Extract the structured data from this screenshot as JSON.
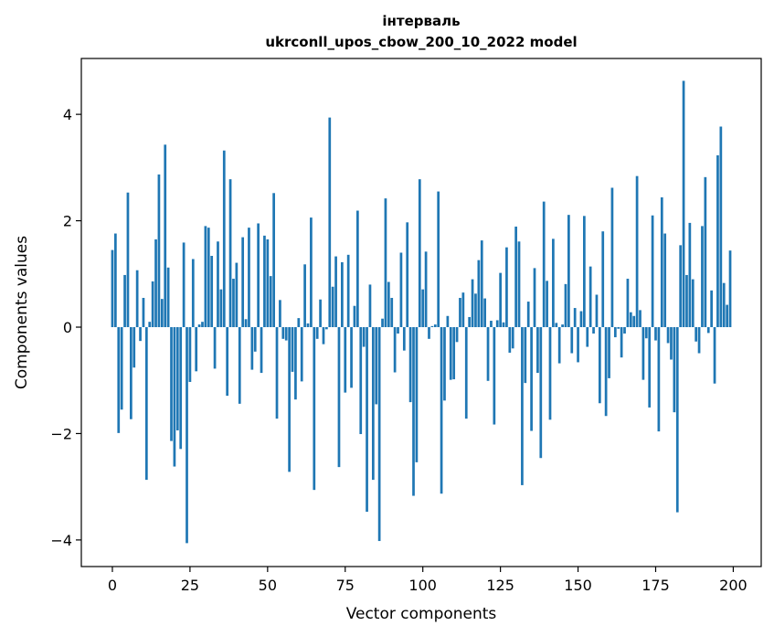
{
  "chart_data": {
    "type": "bar",
    "title_line1": "інтерваль",
    "title_line2": "ukrconll_upos_cbow_200_10_2022 model",
    "xlabel": "Vector components",
    "ylabel": "Components values",
    "xlim": [
      -10,
      209
    ],
    "ylim": [
      -4.5,
      5.05
    ],
    "xticks": [
      0,
      25,
      50,
      75,
      100,
      125,
      150,
      175,
      200
    ],
    "yticks": [
      -4,
      -2,
      0,
      2,
      4
    ],
    "ytick_labels": [
      "−4",
      "−2",
      "0",
      "2",
      "4"
    ],
    "bar_color": "#1f77b4",
    "values": [
      1.45,
      1.76,
      -1.99,
      -1.55,
      0.98,
      2.53,
      -1.73,
      -0.76,
      1.07,
      -0.26,
      0.55,
      -2.87,
      0.1,
      0.86,
      1.65,
      2.87,
      0.53,
      3.43,
      1.12,
      -2.14,
      -2.62,
      -1.94,
      -2.29,
      1.59,
      -4.06,
      -1.03,
      1.28,
      -0.83,
      0.05,
      0.1,
      1.9,
      1.87,
      1.34,
      -0.78,
      1.61,
      0.71,
      3.32,
      -1.29,
      2.78,
      0.91,
      1.21,
      -1.44,
      1.69,
      0.15,
      1.87,
      -0.8,
      -0.46,
      1.95,
      -0.86,
      1.72,
      1.65,
      0.96,
      2.52,
      -1.72,
      0.51,
      -0.22,
      -0.25,
      -2.72,
      -0.84,
      -1.36,
      0.17,
      -1.02,
      1.18,
      0.07,
      2.06,
      -3.06,
      -0.22,
      0.52,
      -0.32,
      -0.04,
      3.94,
      0.76,
      1.33,
      -2.63,
      1.22,
      -1.23,
      1.36,
      -1.14,
      0.4,
      2.19,
      -2.01,
      -0.37,
      -3.47,
      0.8,
      -2.87,
      -1.45,
      -4.02,
      0.16,
      2.42,
      0.85,
      0.55,
      -0.85,
      -0.12,
      1.4,
      -0.44,
      1.97,
      -1.41,
      -3.17,
      -2.54,
      2.78,
      0.71,
      1.42,
      -0.22,
      0.02,
      0.05,
      2.55,
      -3.13,
      -1.38,
      0.21,
      -0.99,
      -0.98,
      -0.28,
      0.55,
      0.65,
      -1.72,
      0.19,
      0.9,
      0.63,
      1.26,
      1.63,
      0.54,
      -1.01,
      0.12,
      -1.83,
      0.13,
      1.02,
      0.09,
      1.5,
      -0.48,
      -0.4,
      1.89,
      1.61,
      -2.97,
      -1.05,
      0.48,
      -1.95,
      1.11,
      -0.86,
      -2.46,
      2.36,
      0.87,
      -1.74,
      1.66,
      0.08,
      -0.68,
      0.05,
      0.81,
      2.11,
      -0.49,
      0.36,
      -0.66,
      0.3,
      2.09,
      -0.37,
      1.14,
      -0.12,
      0.61,
      -1.43,
      1.8,
      -1.67,
      -0.96,
      2.62,
      -0.19,
      -0.03,
      -0.57,
      -0.12,
      0.91,
      0.28,
      0.21,
      2.84,
      0.32,
      -0.99,
      -0.21,
      -1.51,
      2.1,
      -0.25,
      -1.96,
      2.44,
      1.76,
      -0.3,
      -0.61,
      -1.6,
      -3.48,
      1.54,
      4.63,
      0.98,
      1.96,
      0.9,
      -0.27,
      -0.49,
      1.9,
      2.82,
      -0.11,
      0.69,
      -1.06,
      3.23,
      3.77,
      0.83,
      0.42,
      1.44
    ]
  }
}
